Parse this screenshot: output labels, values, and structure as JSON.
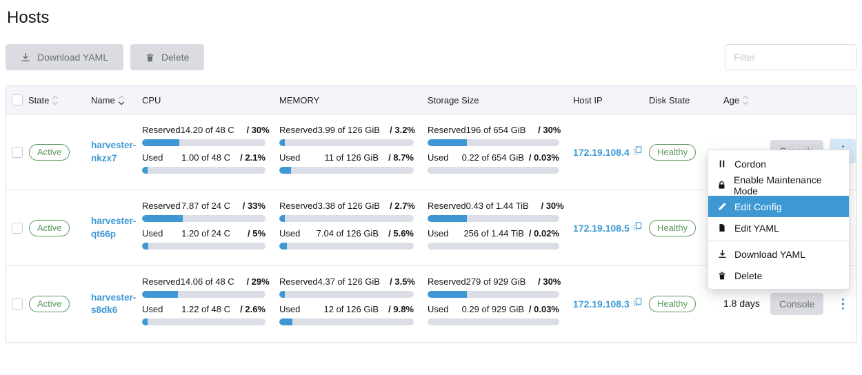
{
  "colors": {
    "primary": "#3d98d3",
    "bar_fill": "#3d98d3",
    "bar_background": "#dcdee7",
    "success_green": "#5d995d",
    "header_background": "#f4f5fa",
    "menu_highlight": "#3d98d3"
  },
  "page": {
    "title": "Hosts"
  },
  "toolbar": {
    "download_yaml_label": "Download YAML",
    "delete_label": "Delete",
    "filter_placeholder": "Filter"
  },
  "table": {
    "headers": {
      "state": "State",
      "name": "Name",
      "cpu": "CPU",
      "memory": "MEMORY",
      "storage": "Storage Size",
      "host_ip": "Host IP",
      "disk_state": "Disk State",
      "age": "Age"
    },
    "metric_labels": {
      "reserved": "Reserved",
      "used": "Used"
    },
    "console_label": "Console",
    "rows": [
      {
        "state": "Active",
        "name": "harvester-nkzx7",
        "cpu": {
          "reserved": {
            "amount": "14.20 of 48 C",
            "ratio": "/ 30%",
            "percent": 30
          },
          "used": {
            "amount": "1.00 of 48 C",
            "ratio": "/ 2.1%",
            "percent": 2.1
          }
        },
        "memory": {
          "reserved": {
            "amount": "3.99 of 126 GiB",
            "ratio": "/ 3.2%",
            "percent": 3.2
          },
          "used": {
            "amount": "11 of 126 GiB",
            "ratio": "/ 8.7%",
            "percent": 8.7
          }
        },
        "storage": {
          "reserved": {
            "amount": "196 of 654 GiB",
            "ratio": "/ 30%",
            "percent": 30
          },
          "used": {
            "amount": "0.22 of 654 GiB",
            "ratio": "/ 0.03%",
            "percent": 0.03
          }
        },
        "host_ip": "172.19.108.4",
        "disk_state": "Healthy",
        "age": ""
      },
      {
        "state": "Active",
        "name": "harvester-qt66p",
        "cpu": {
          "reserved": {
            "amount": "7.87 of 24 C",
            "ratio": "/ 33%",
            "percent": 33
          },
          "used": {
            "amount": "1.20 of 24 C",
            "ratio": "/ 5%",
            "percent": 5
          }
        },
        "memory": {
          "reserved": {
            "amount": "3.38 of 126 GiB",
            "ratio": "/ 2.7%",
            "percent": 2.7
          },
          "used": {
            "amount": "7.04 of 126 GiB",
            "ratio": "/ 5.6%",
            "percent": 5.6
          }
        },
        "storage": {
          "reserved": {
            "amount": "0.43 of 1.44 TiB",
            "ratio": "/ 30%",
            "percent": 30
          },
          "used": {
            "amount": "256 of 1.44 TiB",
            "ratio": "/ 0.02%",
            "percent": 0.02
          }
        },
        "host_ip": "172.19.108.5",
        "disk_state": "Healthy",
        "age": ""
      },
      {
        "state": "Active",
        "name": "harvester-s8dk6",
        "cpu": {
          "reserved": {
            "amount": "14.06 of 48 C",
            "ratio": "/ 29%",
            "percent": 29
          },
          "used": {
            "amount": "1.22 of 48 C",
            "ratio": "/ 2.6%",
            "percent": 2.6
          }
        },
        "memory": {
          "reserved": {
            "amount": "4.37 of 126 GiB",
            "ratio": "/ 3.5%",
            "percent": 3.5
          },
          "used": {
            "amount": "12 of 126 GiB",
            "ratio": "/ 9.8%",
            "percent": 9.8
          }
        },
        "storage": {
          "reserved": {
            "amount": "279 of 929 GiB",
            "ratio": "/ 30%",
            "percent": 30
          },
          "used": {
            "amount": "0.29 of 929 GiB",
            "ratio": "/ 0.03%",
            "percent": 0.03
          }
        },
        "host_ip": "172.19.108.3",
        "disk_state": "Healthy",
        "age": "1.8 days"
      }
    ]
  },
  "action_menu": {
    "selected": "Edit Config",
    "items": [
      {
        "label": "Cordon"
      },
      {
        "label": "Enable Maintenance Mode"
      },
      {
        "label": "Edit Config"
      },
      {
        "label": "Edit YAML"
      },
      {
        "label": "Download YAML"
      },
      {
        "label": "Delete"
      }
    ]
  }
}
